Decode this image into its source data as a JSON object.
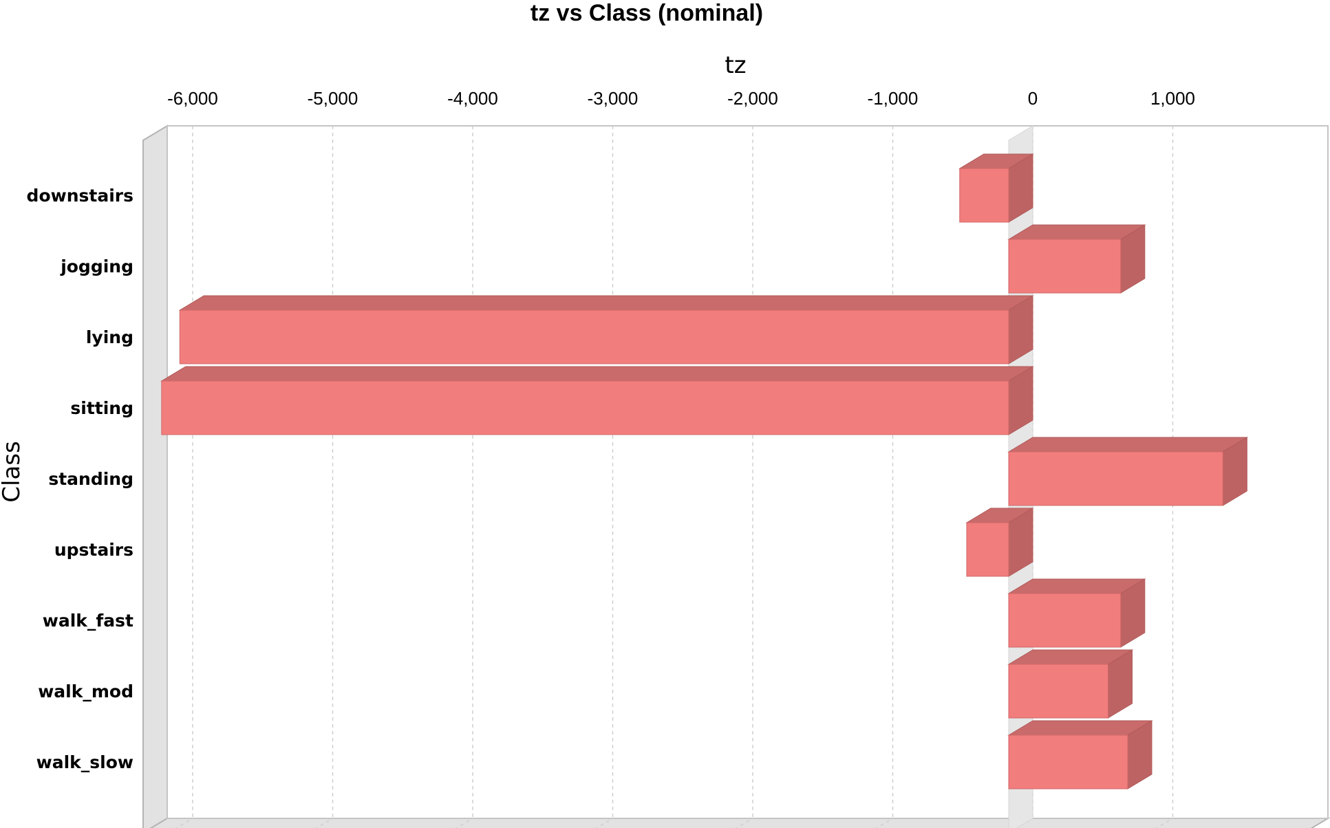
{
  "chart_data": {
    "type": "bar",
    "orientation": "horizontal",
    "title": "tz vs Class (nominal)",
    "xlabel": "tz",
    "ylabel": "Class",
    "categories": [
      "downstairs",
      "jogging",
      "lying",
      "sitting",
      "standing",
      "upstairs",
      "walk_fast",
      "walk_mod",
      "walk_slow"
    ],
    "values": [
      -350,
      800,
      -5920,
      -6050,
      1530,
      -300,
      800,
      710,
      850
    ],
    "xlim": [
      -6400,
      1800
    ],
    "xticks": [
      -6000,
      -5000,
      -4000,
      -3000,
      -2000,
      -1000,
      0,
      1000
    ],
    "xtick_labels": [
      "-6,000",
      "-5,000",
      "-4,000",
      "-3,000",
      "-2,000",
      "-1,000",
      "0",
      "1,000"
    ],
    "bar_color": "#f27d7d",
    "bar_top_color": "#c96b6b",
    "bar_side_color": "#be6363",
    "grid": true,
    "style": "3d"
  }
}
